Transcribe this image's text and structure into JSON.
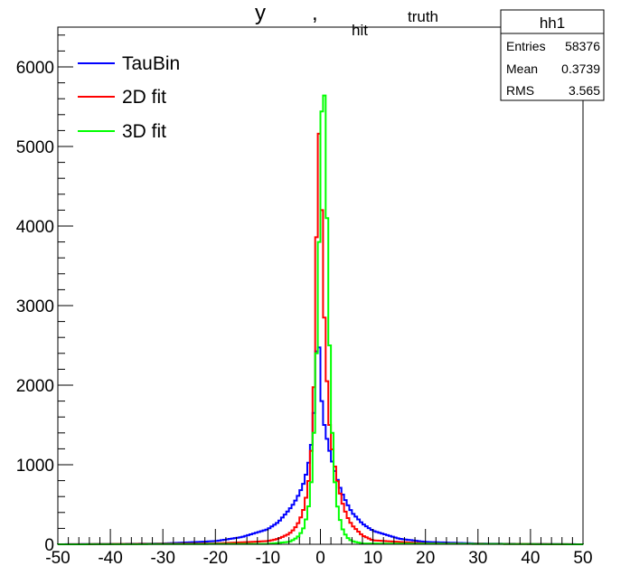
{
  "chart_data": {
    "type": "histogram",
    "title_parts": {
      "main": "y",
      "comma": ",",
      "sub_hit": "hit",
      "sub_truth": "truth"
    },
    "xlim": [
      -50,
      50
    ],
    "ylim": [
      0,
      6500
    ],
    "x_major_ticks": [
      -50,
      -40,
      -30,
      -20,
      -10,
      0,
      10,
      20,
      30,
      40,
      50
    ],
    "x_tick_labels": [
      "-50",
      "-40",
      "-30",
      "-20",
      "-10",
      "0",
      "10",
      "20",
      "30",
      "40",
      "50"
    ],
    "y_major_ticks": [
      0,
      1000,
      2000,
      3000,
      4000,
      5000,
      6000
    ],
    "y_tick_labels": [
      "0",
      "1000",
      "2000",
      "3000",
      "4000",
      "5000",
      "6000"
    ],
    "series": [
      {
        "name": "TauBin",
        "color": "#0000ff",
        "points": [
          [
            -50,
            0
          ],
          [
            -30,
            10
          ],
          [
            -20,
            40
          ],
          [
            -15,
            90
          ],
          [
            -10,
            190
          ],
          [
            -8,
            280
          ],
          [
            -6,
            430
          ],
          [
            -5,
            520
          ],
          [
            -4,
            640
          ],
          [
            -3,
            800
          ],
          [
            -2,
            1100
          ],
          [
            -1.5,
            1400
          ],
          [
            -1,
            1900
          ],
          [
            -0.5,
            2950
          ],
          [
            0,
            2000
          ],
          [
            0.5,
            1600
          ],
          [
            1,
            1400
          ],
          [
            2,
            1100
          ],
          [
            3,
            860
          ],
          [
            4,
            660
          ],
          [
            5,
            520
          ],
          [
            6,
            400
          ],
          [
            8,
            260
          ],
          [
            10,
            170
          ],
          [
            15,
            70
          ],
          [
            20,
            30
          ],
          [
            30,
            10
          ],
          [
            50,
            0
          ]
        ]
      },
      {
        "name": "2D fit",
        "color": "#ff0000",
        "points": [
          [
            -50,
            0
          ],
          [
            -20,
            10
          ],
          [
            -10,
            40
          ],
          [
            -8,
            70
          ],
          [
            -6,
            130
          ],
          [
            -5,
            190
          ],
          [
            -4,
            290
          ],
          [
            -3,
            480
          ],
          [
            -2,
            900
          ],
          [
            -1.5,
            1450
          ],
          [
            -1,
            2500
          ],
          [
            -0.5,
            5220
          ],
          [
            0,
            5100
          ],
          [
            0.5,
            3300
          ],
          [
            1,
            2400
          ],
          [
            1.5,
            1700
          ],
          [
            2,
            1300
          ],
          [
            3,
            870
          ],
          [
            4,
            560
          ],
          [
            5,
            360
          ],
          [
            6,
            240
          ],
          [
            8,
            110
          ],
          [
            10,
            50
          ],
          [
            20,
            10
          ],
          [
            50,
            0
          ]
        ]
      },
      {
        "name": "3D fit",
        "color": "#00ff00",
        "points": [
          [
            -50,
            0
          ],
          [
            -10,
            5
          ],
          [
            -6,
            30
          ],
          [
            -5,
            60
          ],
          [
            -4,
            110
          ],
          [
            -3,
            230
          ],
          [
            -2,
            560
          ],
          [
            -1.5,
            1000
          ],
          [
            -1,
            1800
          ],
          [
            -0.5,
            3000
          ],
          [
            0,
            4600
          ],
          [
            0.5,
            6280
          ],
          [
            1,
            5000
          ],
          [
            1.5,
            3200
          ],
          [
            2,
            1800
          ],
          [
            2.5,
            1000
          ],
          [
            3,
            560
          ],
          [
            4,
            220
          ],
          [
            5,
            90
          ],
          [
            6,
            40
          ],
          [
            8,
            10
          ],
          [
            50,
            0
          ]
        ]
      }
    ],
    "legend": {
      "placement": "top-left",
      "entries": [
        "TauBin",
        "2D fit",
        "3D fit"
      ]
    },
    "stats_box": {
      "title": "hh1",
      "rows": [
        {
          "label": "Entries",
          "value": "58376"
        },
        {
          "label": "Mean",
          "value": "0.3739"
        },
        {
          "label": "RMS",
          "value": "3.565"
        }
      ]
    },
    "grid": false
  }
}
